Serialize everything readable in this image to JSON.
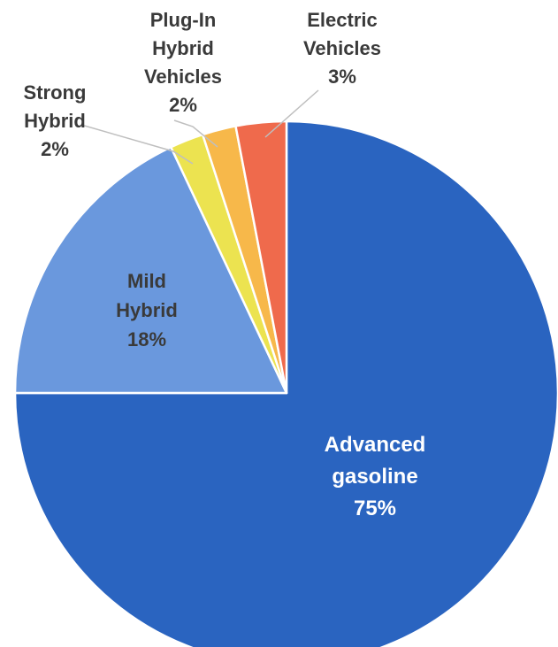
{
  "chart_data": {
    "type": "pie",
    "start_angle_deg": 0,
    "direction": "clockwise",
    "slices": [
      {
        "label_lines": [
          "Advanced",
          "gasoline"
        ],
        "pct_label": "75%",
        "value": 75,
        "color": "#2a64c0",
        "text_color": "#ffffff"
      },
      {
        "label_lines": [
          "Mild",
          "Hybrid"
        ],
        "pct_label": "18%",
        "value": 18,
        "color": "#6a98dd",
        "text_color": "#3a3a3a"
      },
      {
        "label_lines": [
          "Strong",
          "Hybrid"
        ],
        "pct_label": "2%",
        "value": 2,
        "color": "#ece350",
        "text_color": "#3a3a3a"
      },
      {
        "label_lines": [
          "Plug-In",
          "Hybrid",
          "Vehicles"
        ],
        "pct_label": "2%",
        "value": 2,
        "color": "#f7b84a",
        "text_color": "#3a3a3a"
      },
      {
        "label_lines": [
          "Electric",
          "Vehicles"
        ],
        "pct_label": "3%",
        "value": 3,
        "color": "#ef6a4c",
        "text_color": "#3a3a3a"
      }
    ]
  }
}
